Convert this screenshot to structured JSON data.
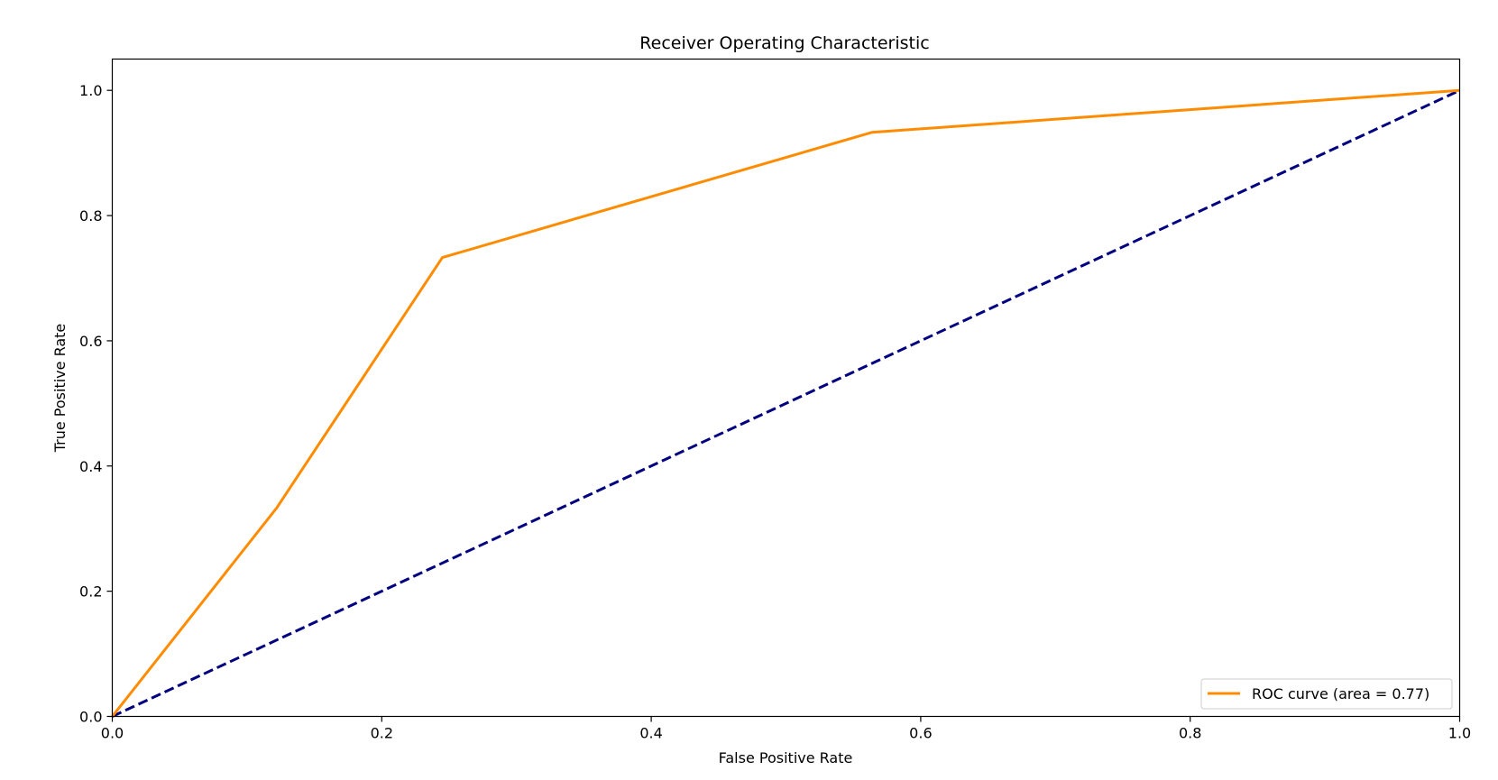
{
  "chart_data": {
    "type": "line",
    "title": "Receiver Operating Characteristic",
    "xlabel": "False Positive Rate",
    "ylabel": "True Positive Rate",
    "xlim": [
      0.0,
      1.0
    ],
    "ylim": [
      0.0,
      1.05
    ],
    "x_ticks": [
      "0.0",
      "0.2",
      "0.4",
      "0.6",
      "0.8",
      "1.0"
    ],
    "y_ticks": [
      "0.0",
      "0.2",
      "0.4",
      "0.6",
      "0.8",
      "1.0"
    ],
    "grid": false,
    "legend_position": "bottom-right",
    "series": [
      {
        "name": "ROC curve (area = 0.77)",
        "color": "#ff8c00",
        "style": "solid",
        "x": [
          0.0,
          0.122,
          0.245,
          0.564,
          1.0
        ],
        "y": [
          0.0,
          0.333,
          0.733,
          0.933,
          1.0
        ]
      },
      {
        "color": "#000080",
        "style": "dashed",
        "x": [
          0.0,
          1.0
        ],
        "y": [
          0.0,
          1.0
        ]
      }
    ]
  }
}
